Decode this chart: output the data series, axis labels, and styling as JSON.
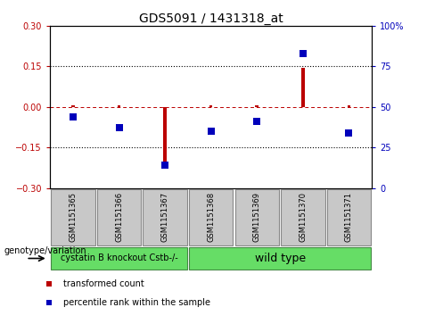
{
  "title": "GDS5091 / 1431318_at",
  "samples": [
    "GSM1151365",
    "GSM1151366",
    "GSM1151367",
    "GSM1151368",
    "GSM1151369",
    "GSM1151370",
    "GSM1151371"
  ],
  "red_values": [
    0.005,
    0.005,
    -0.22,
    0.005,
    0.005,
    0.145,
    0.005
  ],
  "blue_values": [
    44,
    37,
    14,
    35,
    41,
    83,
    34
  ],
  "ylim_left": [
    -0.3,
    0.3
  ],
  "ylim_right": [
    0,
    100
  ],
  "yticks_left": [
    -0.3,
    -0.15,
    0,
    0.15,
    0.3
  ],
  "yticks_right": [
    0,
    25,
    50,
    75,
    100
  ],
  "hlines": [
    0.15,
    -0.15
  ],
  "group1_count": 3,
  "group1_label": "cystatin B knockout Cstb-/-",
  "group2_label": "wild type",
  "group_color": "#66DD66",
  "sample_box_color": "#C8C8C8",
  "genotype_label": "genotype/variation",
  "legend1_label": "transformed count",
  "legend2_label": "percentile rank within the sample",
  "red_color": "#BB0000",
  "blue_color": "#0000BB",
  "bar_width": 0.07,
  "marker_size": 6,
  "title_fontsize": 10,
  "tick_fontsize": 7,
  "sample_fontsize": 6,
  "legend_fontsize": 7,
  "group_label_fontsize": 7,
  "group2_label_fontsize": 9
}
